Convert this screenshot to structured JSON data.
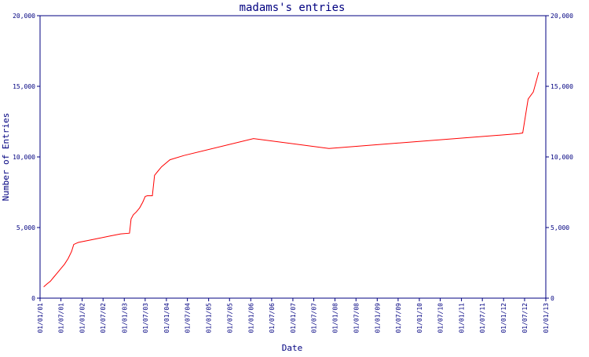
{
  "chart_data": {
    "type": "line",
    "title": "madams's entries",
    "xlabel": "Date",
    "ylabel": "Number of Entries",
    "ylim": [
      0,
      20000
    ],
    "yticks": [
      0,
      5000,
      10000,
      15000,
      20000
    ],
    "ytick_labels": [
      "0",
      "5,000",
      "10,000",
      "15,000",
      "20,000"
    ],
    "xtick_labels": [
      "01/01/01",
      "01/07/01",
      "01/01/02",
      "01/07/02",
      "01/01/03",
      "01/07/03",
      "01/01/04",
      "01/07/04",
      "01/01/05",
      "01/07/05",
      "01/01/06",
      "01/07/06",
      "01/01/07",
      "01/07/07",
      "01/01/08",
      "01/07/08",
      "01/01/09",
      "01/07/09",
      "01/01/10",
      "01/07/10",
      "01/01/11",
      "01/07/11",
      "01/01/12",
      "01/07/12",
      "01/01/13"
    ],
    "grid": false,
    "series": [
      {
        "color": "#ff0000",
        "x": [
          "2001-02-01",
          "2001-03-01",
          "2001-04-01",
          "2001-05-01",
          "2001-06-01",
          "2001-07-01",
          "2001-08-01",
          "2001-09-01",
          "2001-10-01",
          "2001-10-20",
          "2001-11-15",
          "2001-12-01",
          "2002-03-01",
          "2002-06-01",
          "2002-09-01",
          "2002-12-01",
          "2003-02-15",
          "2003-03-01",
          "2003-03-20",
          "2003-04-15",
          "2003-05-15",
          "2003-06-10",
          "2003-07-01",
          "2003-07-20",
          "2003-09-01",
          "2003-09-20",
          "2003-10-20",
          "2003-11-20",
          "2004-02-01",
          "2004-06-01",
          "2006-01-25",
          "2007-11-10",
          "2012-05-15",
          "2012-06-15",
          "2012-08-01",
          "2012-09-15",
          "2012-11-01"
        ],
        "y": [
          800,
          1000,
          1200,
          1500,
          1800,
          2100,
          2400,
          2800,
          3300,
          3800,
          3900,
          3950,
          4100,
          4250,
          4400,
          4550,
          4600,
          5600,
          5900,
          6100,
          6400,
          6800,
          7200,
          7250,
          7250,
          8700,
          9000,
          9300,
          9800,
          10100,
          11300,
          10600,
          11650,
          11700,
          14100,
          14600,
          16000
        ]
      }
    ]
  }
}
